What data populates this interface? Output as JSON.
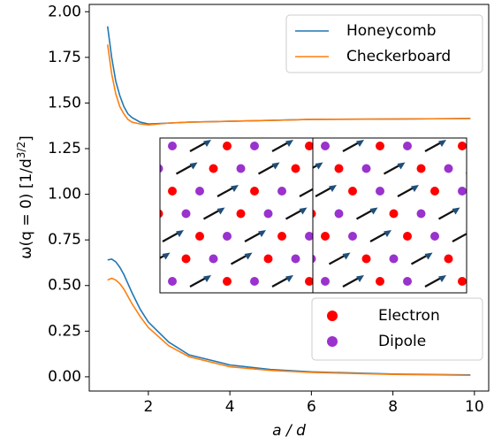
{
  "chart_data": {
    "type": "line",
    "xlabel": "a / d",
    "ylabel": {
      "text": "ω(q = 0) [1/d",
      "superscript": "3/2",
      "closing": "]"
    },
    "x": [
      1,
      1.1,
      1.2,
      1.3,
      1.4,
      1.5,
      1.6,
      1.8,
      2,
      2.5,
      3,
      4,
      5,
      6,
      8,
      9.9
    ],
    "series": [
      {
        "name": "Honeycomb",
        "color": "#1f77b4",
        "upper": [
          1.92,
          1.75,
          1.62,
          1.54,
          1.48,
          1.44,
          1.42,
          1.395,
          1.385,
          1.39,
          1.395,
          1.4,
          1.405,
          1.41,
          1.412,
          1.415
        ],
        "lower": [
          0.64,
          0.645,
          0.63,
          0.6,
          0.56,
          0.51,
          0.46,
          0.37,
          0.3,
          0.19,
          0.12,
          0.065,
          0.04,
          0.027,
          0.015,
          0.01
        ]
      },
      {
        "name": "Checkerboard",
        "color": "#ff7f0e",
        "upper": [
          1.82,
          1.66,
          1.55,
          1.48,
          1.44,
          1.41,
          1.395,
          1.385,
          1.38,
          1.39,
          1.395,
          1.4,
          1.405,
          1.41,
          1.412,
          1.415
        ],
        "lower": [
          0.53,
          0.54,
          0.53,
          0.51,
          0.48,
          0.44,
          0.4,
          0.33,
          0.27,
          0.17,
          0.11,
          0.055,
          0.035,
          0.024,
          0.013,
          0.008
        ]
      }
    ],
    "markers": [
      {
        "name": "Electron",
        "color": "#ff0000"
      },
      {
        "name": "Dipole",
        "color": "#9a32cd"
      }
    ],
    "xlim": [
      0.55,
      10.35
    ],
    "ylim": [
      -0.078,
      2.04
    ],
    "xticks": [
      2,
      4,
      6,
      8,
      10
    ],
    "yticks": [
      {
        "value": 0,
        "label": "0.00"
      },
      {
        "value": 0.25,
        "label": "0.25"
      },
      {
        "value": 0.5,
        "label": "0.50"
      },
      {
        "value": 0.75,
        "label": "0.75"
      },
      {
        "value": 1,
        "label": "1.00"
      },
      {
        "value": 1.25,
        "label": "1.25"
      },
      {
        "value": 1.5,
        "label": "1.50"
      },
      {
        "value": 1.75,
        "label": "1.75"
      },
      {
        "value": 2,
        "label": "2.00"
      }
    ]
  }
}
